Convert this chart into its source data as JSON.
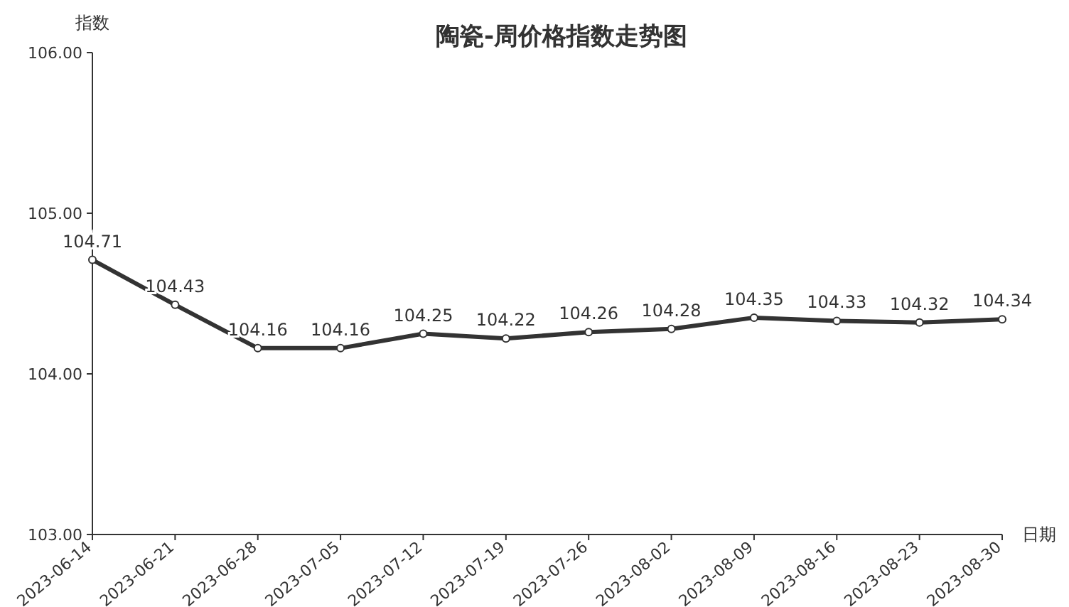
{
  "chart_data": {
    "type": "line",
    "title": "陶瓷-周价格指数走势图",
    "ylabel": "指数",
    "xlabel": "日期",
    "categories": [
      "2023-06-14",
      "2023-06-21",
      "2023-06-28",
      "2023-07-05",
      "2023-07-12",
      "2023-07-19",
      "2023-07-26",
      "2023-08-02",
      "2023-08-09",
      "2023-08-16",
      "2023-08-23",
      "2023-08-30"
    ],
    "series": [
      {
        "color": "#333333",
        "values": [
          104.71,
          104.43,
          104.16,
          104.16,
          104.25,
          104.22,
          104.26,
          104.28,
          104.35,
          104.33,
          104.32,
          104.34
        ]
      }
    ],
    "ylim": [
      103,
      106
    ],
    "yticks": [
      {
        "value": 103,
        "label": "103.00"
      },
      {
        "value": 104,
        "label": "104.00"
      },
      {
        "value": 105,
        "label": "105.00"
      },
      {
        "value": 106,
        "label": "106.00"
      }
    ],
    "marker": "circle",
    "line_style": "solid",
    "data_labels": true,
    "grid": false
  }
}
